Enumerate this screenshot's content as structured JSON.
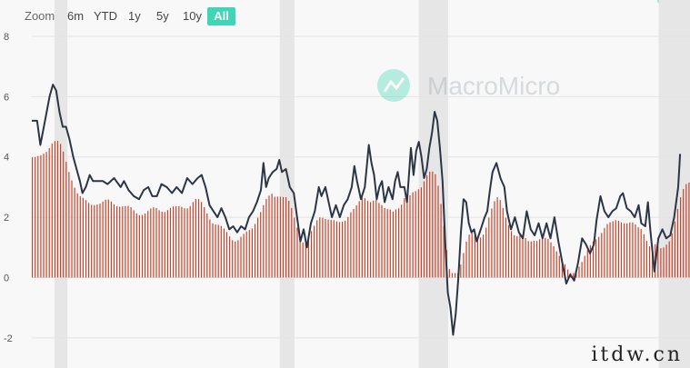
{
  "toolbar": {
    "zoom_label": "Zoom",
    "ranges": [
      {
        "label": "6m",
        "active": false
      },
      {
        "label": "YTD",
        "active": false
      },
      {
        "label": "1y",
        "active": false
      },
      {
        "label": "5y",
        "active": false
      },
      {
        "label": "10y",
        "active": false
      },
      {
        "label": "All",
        "active": true
      }
    ]
  },
  "watermark": {
    "text": "MacroMicro"
  },
  "footer_mark": "itdw.cn",
  "chart_data": {
    "type": "bar+line",
    "title": "",
    "xlabel": "",
    "ylabel": "",
    "ylim": [
      -3,
      8
    ],
    "yticks": [
      -2,
      0,
      2,
      4,
      6,
      8
    ],
    "grid": true,
    "colors": {
      "bars": "#c8442a",
      "line": "#2c3545",
      "accent": "#3ed6b4"
    },
    "shaded_periods": [
      [
        0.0345,
        0.054
      ],
      [
        0.3768,
        0.399
      ],
      [
        0.588,
        0.6325
      ],
      [
        0.9525,
        1.0
      ]
    ],
    "series": [
      {
        "type": "line",
        "points": [
          [
            0.0,
            5.2
          ],
          [
            0.008,
            5.2
          ],
          [
            0.013,
            4.4
          ],
          [
            0.02,
            5.2
          ],
          [
            0.027,
            6.0
          ],
          [
            0.032,
            6.4
          ],
          [
            0.037,
            6.2
          ],
          [
            0.042,
            5.5
          ],
          [
            0.047,
            5.0
          ],
          [
            0.052,
            5.0
          ],
          [
            0.057,
            4.6
          ],
          [
            0.063,
            4.0
          ],
          [
            0.068,
            3.6
          ],
          [
            0.073,
            3.2
          ],
          [
            0.077,
            2.8
          ],
          [
            0.082,
            3.0
          ],
          [
            0.088,
            3.4
          ],
          [
            0.093,
            3.2
          ],
          [
            0.1,
            3.2
          ],
          [
            0.108,
            3.2
          ],
          [
            0.115,
            3.1
          ],
          [
            0.125,
            3.3
          ],
          [
            0.135,
            3.0
          ],
          [
            0.14,
            3.2
          ],
          [
            0.147,
            2.9
          ],
          [
            0.155,
            2.7
          ],
          [
            0.163,
            2.6
          ],
          [
            0.17,
            2.9
          ],
          [
            0.177,
            3.0
          ],
          [
            0.183,
            2.7
          ],
          [
            0.19,
            2.7
          ],
          [
            0.197,
            3.1
          ],
          [
            0.205,
            3.0
          ],
          [
            0.213,
            2.8
          ],
          [
            0.22,
            3.0
          ],
          [
            0.228,
            2.8
          ],
          [
            0.236,
            3.3
          ],
          [
            0.244,
            3.1
          ],
          [
            0.252,
            3.3
          ],
          [
            0.258,
            3.4
          ],
          [
            0.264,
            3.0
          ],
          [
            0.27,
            2.4
          ],
          [
            0.276,
            2.2
          ],
          [
            0.282,
            2.0
          ],
          [
            0.288,
            2.3
          ],
          [
            0.294,
            2.0
          ],
          [
            0.3,
            1.6
          ],
          [
            0.306,
            1.7
          ],
          [
            0.312,
            1.5
          ],
          [
            0.318,
            1.7
          ],
          [
            0.324,
            1.6
          ],
          [
            0.33,
            2.0
          ],
          [
            0.336,
            2.2
          ],
          [
            0.342,
            2.5
          ],
          [
            0.348,
            2.9
          ],
          [
            0.352,
            3.8
          ],
          [
            0.356,
            3.0
          ],
          [
            0.36,
            3.3
          ],
          [
            0.366,
            3.5
          ],
          [
            0.372,
            3.6
          ],
          [
            0.376,
            3.9
          ],
          [
            0.38,
            3.5
          ],
          [
            0.386,
            3.6
          ],
          [
            0.392,
            3.0
          ],
          [
            0.398,
            2.8
          ],
          [
            0.403,
            2.0
          ],
          [
            0.408,
            1.2
          ],
          [
            0.413,
            1.6
          ],
          [
            0.418,
            1.0
          ],
          [
            0.424,
            1.8
          ],
          [
            0.43,
            2.2
          ],
          [
            0.436,
            3.0
          ],
          [
            0.44,
            2.7
          ],
          [
            0.446,
            3.0
          ],
          [
            0.45,
            2.6
          ],
          [
            0.456,
            2.0
          ],
          [
            0.462,
            2.4
          ],
          [
            0.468,
            2.0
          ],
          [
            0.474,
            2.4
          ],
          [
            0.48,
            2.6
          ],
          [
            0.486,
            3.0
          ],
          [
            0.49,
            3.7
          ],
          [
            0.494,
            3.2
          ],
          [
            0.5,
            2.6
          ],
          [
            0.506,
            3.0
          ],
          [
            0.512,
            4.4
          ],
          [
            0.516,
            3.8
          ],
          [
            0.52,
            3.4
          ],
          [
            0.524,
            2.6
          ],
          [
            0.528,
            3.0
          ],
          [
            0.532,
            3.2
          ],
          [
            0.536,
            2.5
          ],
          [
            0.542,
            3.0
          ],
          [
            0.548,
            2.6
          ],
          [
            0.552,
            3.2
          ],
          [
            0.556,
            3.5
          ],
          [
            0.56,
            3.0
          ],
          [
            0.566,
            3.0
          ],
          [
            0.57,
            2.5
          ],
          [
            0.576,
            4.3
          ],
          [
            0.58,
            3.4
          ],
          [
            0.584,
            4.2
          ],
          [
            0.588,
            4.5
          ],
          [
            0.592,
            4.0
          ],
          [
            0.596,
            3.3
          ],
          [
            0.6,
            3.6
          ],
          [
            0.604,
            4.3
          ],
          [
            0.608,
            4.8
          ],
          [
            0.612,
            5.5
          ],
          [
            0.616,
            5.2
          ],
          [
            0.62,
            4.3
          ],
          [
            0.624,
            3.2
          ],
          [
            0.628,
            1.2
          ],
          [
            0.632,
            -0.5
          ],
          [
            0.636,
            -1.0
          ],
          [
            0.64,
            -1.9
          ],
          [
            0.644,
            -1.2
          ],
          [
            0.648,
            0.0
          ],
          [
            0.652,
            1.5
          ],
          [
            0.656,
            2.6
          ],
          [
            0.66,
            2.5
          ],
          [
            0.664,
            1.8
          ],
          [
            0.668,
            1.5
          ],
          [
            0.672,
            1.6
          ],
          [
            0.676,
            1.2
          ],
          [
            0.682,
            1.6
          ],
          [
            0.688,
            2.0
          ],
          [
            0.692,
            2.2
          ],
          [
            0.696,
            2.9
          ],
          [
            0.7,
            3.5
          ],
          [
            0.706,
            3.8
          ],
          [
            0.712,
            3.3
          ],
          [
            0.718,
            3.0
          ],
          [
            0.722,
            2.2
          ],
          [
            0.728,
            1.6
          ],
          [
            0.734,
            2.0
          ],
          [
            0.74,
            1.5
          ],
          [
            0.746,
            1.3
          ],
          [
            0.752,
            2.2
          ],
          [
            0.758,
            1.6
          ],
          [
            0.764,
            1.4
          ],
          [
            0.77,
            1.8
          ],
          [
            0.776,
            1.3
          ],
          [
            0.782,
            1.8
          ],
          [
            0.788,
            1.3
          ],
          [
            0.794,
            2.0
          ],
          [
            0.8,
            1.2
          ],
          [
            0.806,
            0.5
          ],
          [
            0.812,
            -0.2
          ],
          [
            0.818,
            0.1
          ],
          [
            0.824,
            -0.1
          ],
          [
            0.83,
            0.5
          ],
          [
            0.836,
            1.3
          ],
          [
            0.842,
            1.1
          ],
          [
            0.848,
            0.8
          ],
          [
            0.854,
            1.1
          ],
          [
            0.858,
            1.9
          ],
          [
            0.864,
            2.7
          ],
          [
            0.87,
            2.2
          ],
          [
            0.876,
            2.0
          ],
          [
            0.882,
            2.2
          ],
          [
            0.888,
            2.3
          ],
          [
            0.894,
            2.7
          ],
          [
            0.898,
            2.8
          ],
          [
            0.904,
            2.3
          ],
          [
            0.91,
            2.2
          ],
          [
            0.916,
            2.0
          ],
          [
            0.922,
            2.4
          ],
          [
            0.926,
            1.8
          ],
          [
            0.932,
            1.7
          ],
          [
            0.936,
            2.5
          ],
          [
            0.94,
            1.5
          ],
          [
            0.946,
            0.2
          ],
          [
            0.952,
            1.3
          ],
          [
            0.958,
            1.6
          ],
          [
            0.964,
            1.3
          ],
          [
            0.97,
            1.4
          ],
          [
            0.976,
            2.0
          ],
          [
            0.982,
            3.0
          ],
          [
            0.985,
            4.1
          ]
        ]
      }
    ]
  }
}
